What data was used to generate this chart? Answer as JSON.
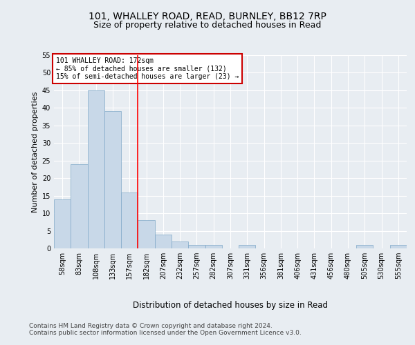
{
  "title1": "101, WHALLEY ROAD, READ, BURNLEY, BB12 7RP",
  "title2": "Size of property relative to detached houses in Read",
  "xlabel": "Distribution of detached houses by size in Read",
  "ylabel": "Number of detached properties",
  "bins": [
    "58sqm",
    "83sqm",
    "108sqm",
    "133sqm",
    "157sqm",
    "182sqm",
    "207sqm",
    "232sqm",
    "257sqm",
    "282sqm",
    "307sqm",
    "331sqm",
    "356sqm",
    "381sqm",
    "406sqm",
    "431sqm",
    "456sqm",
    "480sqm",
    "505sqm",
    "530sqm",
    "555sqm"
  ],
  "values": [
    14,
    24,
    45,
    39,
    16,
    8,
    4,
    2,
    1,
    1,
    0,
    1,
    0,
    0,
    0,
    0,
    0,
    0,
    1,
    0,
    1
  ],
  "bar_color": "#c8d8e8",
  "bar_edge_color": "#7fa8c8",
  "ylim": [
    0,
    55
  ],
  "yticks": [
    0,
    5,
    10,
    15,
    20,
    25,
    30,
    35,
    40,
    45,
    50,
    55
  ],
  "red_line_x": 4.5,
  "annotation_text": "101 WHALLEY ROAD: 172sqm\n← 85% of detached houses are smaller (132)\n15% of semi-detached houses are larger (23) →",
  "annotation_box_color": "#ffffff",
  "annotation_box_edge": "#cc0000",
  "footer_text": "Contains HM Land Registry data © Crown copyright and database right 2024.\nContains public sector information licensed under the Open Government Licence v3.0.",
  "background_color": "#e8edf2",
  "plot_background": "#e8edf2",
  "grid_color": "#ffffff",
  "title1_fontsize": 10,
  "title2_fontsize": 9,
  "xlabel_fontsize": 8.5,
  "ylabel_fontsize": 8,
  "tick_fontsize": 7,
  "footer_fontsize": 6.5
}
